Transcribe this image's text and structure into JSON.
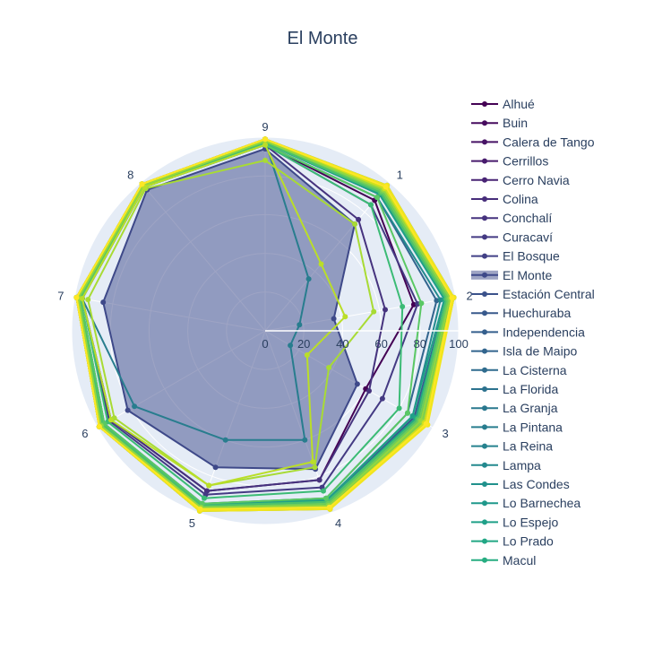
{
  "chart_data": {
    "type": "radar",
    "title": "El Monte",
    "axes": [
      "1",
      "2",
      "3",
      "4",
      "5",
      "6",
      "7",
      "8",
      "9"
    ],
    "radial_range": [
      0,
      100
    ],
    "radial_ticks": [
      "0",
      "20",
      "40",
      "60",
      "80",
      "100"
    ],
    "highlighted_series": "El Monte",
    "legend_position": "right",
    "grid": true,
    "series": [
      {
        "name": "Alhué",
        "color": "#440154",
        "values": [
          88,
          78,
          60,
          82,
          88,
          92,
          96,
          98,
          96
        ]
      },
      {
        "name": "Buin",
        "color": "#460b5e",
        "values": [
          92,
          98,
          92,
          95,
          98,
          98,
          98,
          98,
          98
        ]
      },
      {
        "name": "Calera de Tango",
        "color": "#471365",
        "values": [
          97,
          98,
          94,
          96,
          98,
          99,
          99,
          99,
          99
        ]
      },
      {
        "name": "Cerrillos",
        "color": "#481b6d",
        "values": [
          92,
          95,
          90,
          94,
          96,
          97,
          98,
          98,
          98
        ]
      },
      {
        "name": "Cerro Navia",
        "color": "#482374",
        "values": [
          94,
          96,
          91,
          95,
          97,
          97,
          98,
          98,
          97
        ]
      },
      {
        "name": "Colina",
        "color": "#472d7b",
        "values": [
          95,
          97,
          93,
          96,
          98,
          98,
          99,
          99,
          98
        ]
      },
      {
        "name": "Conchalí",
        "color": "#46337e",
        "values": [
          75,
          63,
          62,
          82,
          88,
          92,
          96,
          97,
          96
        ]
      },
      {
        "name": "Curacaví",
        "color": "#443a83",
        "values": [
          85,
          80,
          70,
          86,
          90,
          93,
          96,
          97,
          96
        ]
      },
      {
        "name": "El Bosque",
        "color": "#424086",
        "values": [
          93,
          96,
          92,
          95,
          97,
          98,
          98,
          98,
          98
        ]
      },
      {
        "name": "El Monte",
        "color": "#3e4989",
        "values": [
          72,
          36,
          55,
          76,
          75,
          82,
          85,
          95,
          94
        ]
      },
      {
        "name": "Estación Central",
        "color": "#3b528b",
        "values": [
          94,
          96,
          92,
          95,
          97,
          97,
          98,
          98,
          97
        ]
      },
      {
        "name": "Huechuraba",
        "color": "#38598c",
        "values": [
          92,
          95,
          89,
          94,
          96,
          97,
          97,
          97,
          97
        ]
      },
      {
        "name": "Independencia",
        "color": "#355f8d",
        "values": [
          93,
          95,
          90,
          94,
          96,
          97,
          98,
          98,
          97
        ]
      },
      {
        "name": "Isla de Maipo",
        "color": "#32658e",
        "values": [
          90,
          90,
          85,
          92,
          95,
          96,
          97,
          97,
          96
        ]
      },
      {
        "name": "La Cisterna",
        "color": "#2f6c8e",
        "values": [
          94,
          96,
          91,
          95,
          97,
          98,
          98,
          98,
          98
        ]
      },
      {
        "name": "La Florida",
        "color": "#2c728e",
        "values": [
          94,
          97,
          92,
          96,
          97,
          98,
          98,
          98,
          98
        ]
      },
      {
        "name": "La Granja",
        "color": "#2a788e",
        "values": [
          95,
          96,
          92,
          95,
          97,
          97,
          98,
          98,
          97
        ]
      },
      {
        "name": "La Pintana",
        "color": "#287d8e",
        "values": [
          35,
          18,
          15,
          60,
          60,
          78,
          96,
          97,
          98
        ]
      },
      {
        "name": "La Reina",
        "color": "#26828e",
        "values": [
          97,
          99,
          95,
          97,
          99,
          99,
          99,
          99,
          99
        ]
      },
      {
        "name": "Lampa",
        "color": "#23898e",
        "values": [
          90,
          92,
          88,
          93,
          95,
          96,
          97,
          97,
          96
        ]
      },
      {
        "name": "Las Condes",
        "color": "#21918c",
        "values": [
          98,
          99,
          96,
          98,
          99,
          99,
          99,
          99,
          99
        ]
      },
      {
        "name": "Lo Barnechea",
        "color": "#1f988b",
        "values": [
          96,
          98,
          94,
          97,
          98,
          99,
          99,
          99,
          99
        ]
      },
      {
        "name": "Lo Espejo",
        "color": "#1fa088",
        "values": [
          92,
          94,
          88,
          93,
          96,
          97,
          97,
          97,
          97
        ]
      },
      {
        "name": "Lo Prado",
        "color": "#22a785",
        "values": [
          93,
          95,
          90,
          94,
          96,
          97,
          98,
          98,
          97
        ]
      },
      {
        "name": "Macul",
        "color": "#27ad81",
        "values": [
          95,
          97,
          93,
          96,
          98,
          98,
          99,
          99,
          98
        ]
      },
      {
        "name": "",
        "color": "#31b57b",
        "values": [
          94,
          96,
          92,
          95,
          97,
          97,
          98,
          98,
          97
        ]
      },
      {
        "name": "",
        "color": "#3bbb75",
        "values": [
          85,
          72,
          80,
          88,
          92,
          94,
          96,
          97,
          96
        ]
      },
      {
        "name": "",
        "color": "#4ac16d",
        "values": [
          93,
          95,
          91,
          94,
          96,
          97,
          98,
          98,
          97
        ]
      },
      {
        "name": "",
        "color": "#5ac864",
        "values": [
          90,
          82,
          85,
          92,
          95,
          96,
          97,
          97,
          96
        ]
      },
      {
        "name": "",
        "color": "#6ccd5a",
        "values": [
          94,
          96,
          92,
          95,
          97,
          98,
          98,
          98,
          98
        ]
      },
      {
        "name": "",
        "color": "#7fd34e",
        "values": [
          96,
          98,
          94,
          96,
          98,
          98,
          99,
          99,
          98
        ]
      },
      {
        "name": "",
        "color": "#93d741",
        "values": [
          95,
          97,
          93,
          96,
          97,
          98,
          98,
          98,
          98
        ]
      },
      {
        "name": "",
        "color": "#a8db34",
        "values": [
          72,
          57,
          38,
          75,
          85,
          90,
          93,
          96,
          88
        ]
      },
      {
        "name": "",
        "color": "#bade28",
        "values": [
          45,
          42,
          25,
          72,
          85,
          92,
          96,
          97,
          96
        ]
      },
      {
        "name": "",
        "color": "#cde11d",
        "values": [
          96,
          98,
          95,
          97,
          98,
          99,
          99,
          99,
          99
        ]
      },
      {
        "name": "",
        "color": "#dfe318",
        "values": [
          97,
          99,
          96,
          98,
          99,
          99,
          99,
          99,
          99
        ]
      },
      {
        "name": "",
        "color": "#f1e51d",
        "values": [
          98,
          99,
          97,
          98,
          99,
          99,
          99,
          99,
          99
        ]
      },
      {
        "name": "",
        "color": "#fde725",
        "values": [
          97,
          98,
          96,
          97,
          98,
          99,
          99,
          99,
          99
        ]
      }
    ]
  }
}
